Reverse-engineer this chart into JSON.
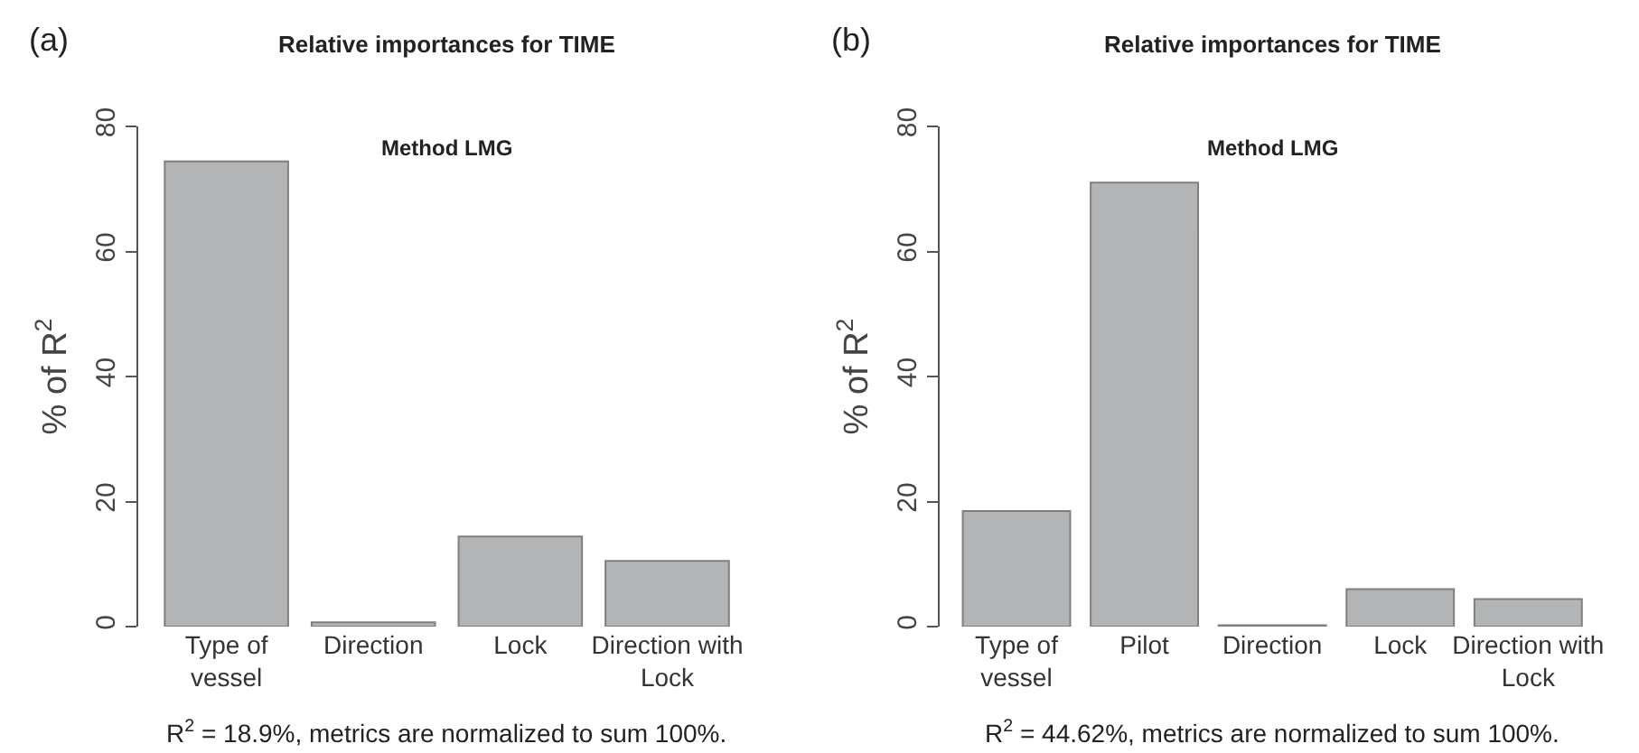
{
  "chart_data": [
    {
      "type": "bar",
      "title": "Relative importances for TIME",
      "ylabel": "% of R$^{2}$",
      "categories": [
        "Type of\nvessel",
        "Direction",
        "Lock",
        "Direction with\nLock"
      ],
      "values": [
        74.4,
        0.7,
        14.4,
        10.5
      ],
      "color": "#b3b4b6",
      "ylim": [
        0,
        80
      ],
      "yticks": [
        0,
        20,
        40,
        60,
        80
      ],
      "annotations": [
        "(a)",
        "Method LMG",
        "R$^{2}$ = 18.9%, metrics are normalized to sum 100%."
      ]
    },
    {
      "type": "bar",
      "title": "Relative importances for TIME",
      "ylabel": "% of R$^{2}$",
      "categories": [
        "Type of\nvessel",
        "Pilot",
        "Direction",
        "Lock",
        "Direction with\nLock"
      ],
      "values": [
        18.5,
        71.0,
        0.2,
        6.0,
        4.4
      ],
      "color": "#b3b4b6",
      "ylim": [
        0,
        80
      ],
      "yticks": [
        0,
        20,
        40,
        60,
        80
      ],
      "annotations": [
        "(b)",
        "Method LMG",
        "R$^{2}$ = 44.62%, metrics are normalized to sum 100%."
      ]
    }
  ]
}
